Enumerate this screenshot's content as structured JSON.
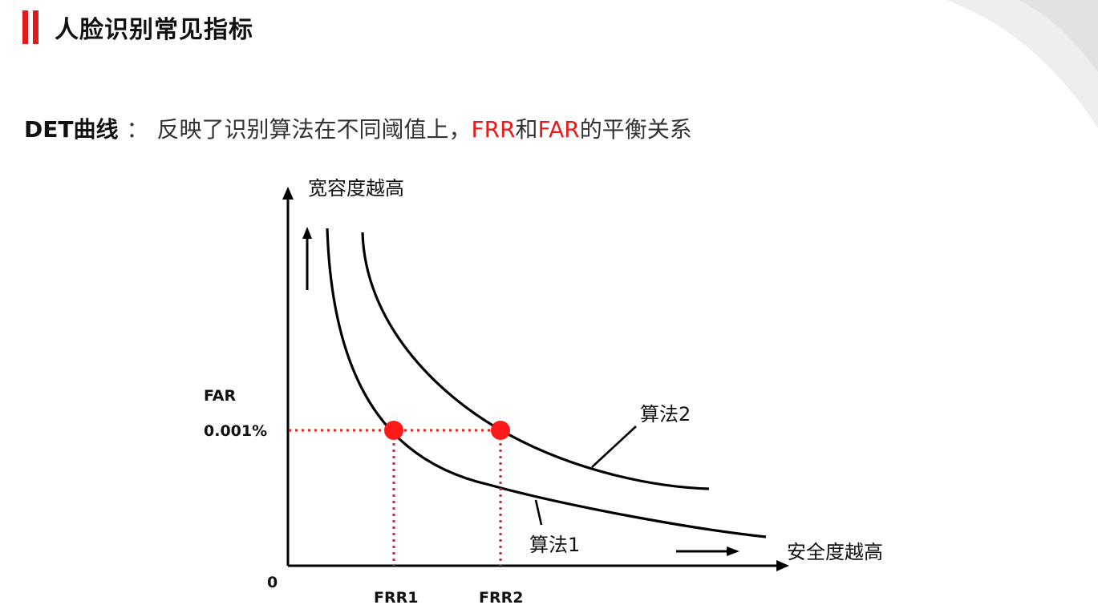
{
  "page": {
    "title": "人脸识别常见指标",
    "accent_color": "#e01b1b"
  },
  "subtitle": {
    "term": "DET曲线",
    "colon": "：",
    "text_before": "反映了识别算法在不同阈值上，",
    "highlight1": "FRR",
    "connector": "和",
    "highlight2": "FAR",
    "text_after": "的平衡关系",
    "highlight_color": "#e81b1b"
  },
  "diagram": {
    "y_axis_top_label": "宽容度越高",
    "x_axis_right_label": "安全度越高",
    "y_axis_name": "FAR",
    "far_threshold_label": "0.001%",
    "origin_label": "0",
    "frr1_label": "FRR1",
    "frr2_label": "FRR2",
    "curve1_label": "算法1",
    "curve2_label": "算法2",
    "marker_color": "#ff1a1a",
    "dotted_line_color": "#e02020"
  }
}
